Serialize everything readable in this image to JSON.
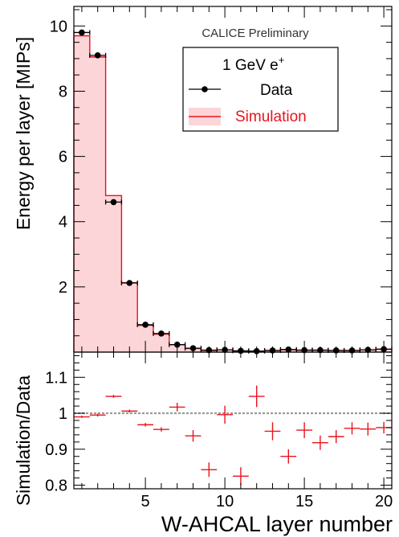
{
  "annotation": "CALICE Preliminary",
  "colors": {
    "data": "#000000",
    "simulation_line": "#e8141e",
    "simulation_fill": "#fbd5d7",
    "reference_line": "#999999",
    "axes": "#000000"
  },
  "chart_data": [
    {
      "type": "bar",
      "panel": "top",
      "title": "",
      "xlabel": "",
      "ylabel": "Energy per layer [MIPs]",
      "xlim": [
        0.5,
        20.5
      ],
      "ylim": [
        0,
        10.6
      ],
      "y_ticks": [
        2,
        4,
        6,
        8,
        10
      ],
      "y_tick_labels": [
        "2",
        "4",
        "6",
        "8",
        "10"
      ],
      "grid": false,
      "legend": {
        "placement": "top-right",
        "header_text": "1 GeV e",
        "header_superscript": "+",
        "entries": [
          "Data",
          "Simulation"
        ]
      },
      "categories": [
        1,
        2,
        3,
        4,
        5,
        6,
        7,
        8,
        9,
        10,
        11,
        12,
        13,
        14,
        15,
        16,
        17,
        18,
        19,
        20
      ],
      "series": [
        {
          "name": "Data",
          "style": "points-with-errorbars",
          "values": [
            9.8,
            9.1,
            4.6,
            2.12,
            0.84,
            0.57,
            0.23,
            0.12,
            0.06,
            0.07,
            0.04,
            0.03,
            0.05,
            0.08,
            0.06,
            0.06,
            0.05,
            0.05,
            0.07,
            0.09
          ]
        },
        {
          "name": "Simulation",
          "style": "filled-histogram",
          "values": [
            9.7,
            9.05,
            4.8,
            2.13,
            0.82,
            0.55,
            0.23,
            0.11,
            0.05,
            0.07,
            0.03,
            0.03,
            0.05,
            0.07,
            0.06,
            0.06,
            0.05,
            0.05,
            0.07,
            0.09
          ]
        }
      ]
    },
    {
      "type": "scatter",
      "panel": "bottom",
      "title": "",
      "xlabel": "W-AHCAL layer number",
      "ylabel": "Simulation/Data",
      "xlim": [
        0.5,
        20.5
      ],
      "ylim": [
        0.79,
        1.17
      ],
      "x_ticks": [
        5,
        10,
        15,
        20
      ],
      "x_tick_labels": [
        "5",
        "10",
        "15",
        "20"
      ],
      "y_ticks": [
        0.8,
        0.9,
        1.0,
        1.1
      ],
      "y_tick_labels": [
        "0.8",
        "0.9",
        "1",
        "1.1"
      ],
      "reference_value": 1.0,
      "grid": false,
      "series": [
        {
          "name": "Simulation/Data",
          "style": "crosses",
          "x": [
            1,
            2,
            3,
            4,
            5,
            6,
            7,
            8,
            9,
            10,
            11,
            12,
            13,
            14,
            15,
            16,
            17,
            18,
            19,
            20
          ],
          "y": [
            0.99,
            0.995,
            1.047,
            1.006,
            0.968,
            0.955,
            1.017,
            0.937,
            0.843,
            0.996,
            0.825,
            1.047,
            0.95,
            0.88,
            0.953,
            0.918,
            0.935,
            0.958,
            0.956,
            0.96
          ],
          "y_err": [
            0.003,
            0.004,
            0.004,
            0.004,
            0.005,
            0.006,
            0.012,
            0.016,
            0.02,
            0.025,
            0.025,
            0.03,
            0.025,
            0.02,
            0.022,
            0.02,
            0.018,
            0.017,
            0.018,
            0.016
          ]
        }
      ]
    }
  ]
}
